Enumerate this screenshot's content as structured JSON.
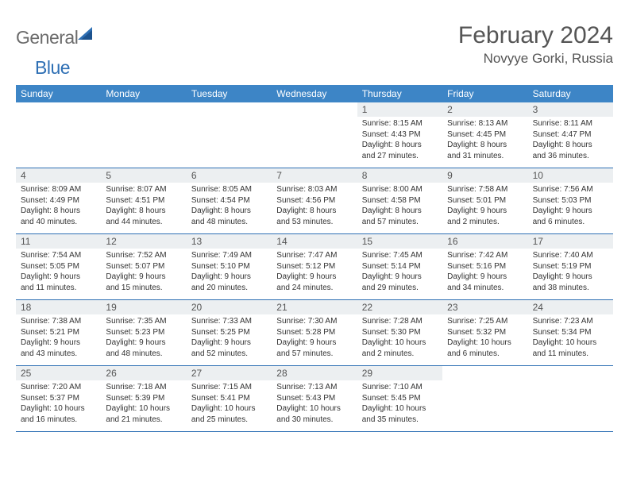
{
  "brand": {
    "general": "General",
    "blue": "Blue"
  },
  "title": "February 2024",
  "location": "Novyye Gorki, Russia",
  "colors": {
    "header_band": "#3d85c6",
    "daynum_band": "#eceff1",
    "week_divider": "#2e6fb4",
    "text": "#333333",
    "title_text": "#555555",
    "logo_gray": "#6b6b6b",
    "logo_blue": "#2e6fb4",
    "background": "#ffffff"
  },
  "days_of_week": [
    "Sunday",
    "Monday",
    "Tuesday",
    "Wednesday",
    "Thursday",
    "Friday",
    "Saturday"
  ],
  "weeks": [
    [
      null,
      null,
      null,
      null,
      {
        "n": "1",
        "sunrise": "Sunrise: 8:15 AM",
        "sunset": "Sunset: 4:43 PM",
        "daylight1": "Daylight: 8 hours",
        "daylight2": "and 27 minutes."
      },
      {
        "n": "2",
        "sunrise": "Sunrise: 8:13 AM",
        "sunset": "Sunset: 4:45 PM",
        "daylight1": "Daylight: 8 hours",
        "daylight2": "and 31 minutes."
      },
      {
        "n": "3",
        "sunrise": "Sunrise: 8:11 AM",
        "sunset": "Sunset: 4:47 PM",
        "daylight1": "Daylight: 8 hours",
        "daylight2": "and 36 minutes."
      }
    ],
    [
      {
        "n": "4",
        "sunrise": "Sunrise: 8:09 AM",
        "sunset": "Sunset: 4:49 PM",
        "daylight1": "Daylight: 8 hours",
        "daylight2": "and 40 minutes."
      },
      {
        "n": "5",
        "sunrise": "Sunrise: 8:07 AM",
        "sunset": "Sunset: 4:51 PM",
        "daylight1": "Daylight: 8 hours",
        "daylight2": "and 44 minutes."
      },
      {
        "n": "6",
        "sunrise": "Sunrise: 8:05 AM",
        "sunset": "Sunset: 4:54 PM",
        "daylight1": "Daylight: 8 hours",
        "daylight2": "and 48 minutes."
      },
      {
        "n": "7",
        "sunrise": "Sunrise: 8:03 AM",
        "sunset": "Sunset: 4:56 PM",
        "daylight1": "Daylight: 8 hours",
        "daylight2": "and 53 minutes."
      },
      {
        "n": "8",
        "sunrise": "Sunrise: 8:00 AM",
        "sunset": "Sunset: 4:58 PM",
        "daylight1": "Daylight: 8 hours",
        "daylight2": "and 57 minutes."
      },
      {
        "n": "9",
        "sunrise": "Sunrise: 7:58 AM",
        "sunset": "Sunset: 5:01 PM",
        "daylight1": "Daylight: 9 hours",
        "daylight2": "and 2 minutes."
      },
      {
        "n": "10",
        "sunrise": "Sunrise: 7:56 AM",
        "sunset": "Sunset: 5:03 PM",
        "daylight1": "Daylight: 9 hours",
        "daylight2": "and 6 minutes."
      }
    ],
    [
      {
        "n": "11",
        "sunrise": "Sunrise: 7:54 AM",
        "sunset": "Sunset: 5:05 PM",
        "daylight1": "Daylight: 9 hours",
        "daylight2": "and 11 minutes."
      },
      {
        "n": "12",
        "sunrise": "Sunrise: 7:52 AM",
        "sunset": "Sunset: 5:07 PM",
        "daylight1": "Daylight: 9 hours",
        "daylight2": "and 15 minutes."
      },
      {
        "n": "13",
        "sunrise": "Sunrise: 7:49 AM",
        "sunset": "Sunset: 5:10 PM",
        "daylight1": "Daylight: 9 hours",
        "daylight2": "and 20 minutes."
      },
      {
        "n": "14",
        "sunrise": "Sunrise: 7:47 AM",
        "sunset": "Sunset: 5:12 PM",
        "daylight1": "Daylight: 9 hours",
        "daylight2": "and 24 minutes."
      },
      {
        "n": "15",
        "sunrise": "Sunrise: 7:45 AM",
        "sunset": "Sunset: 5:14 PM",
        "daylight1": "Daylight: 9 hours",
        "daylight2": "and 29 minutes."
      },
      {
        "n": "16",
        "sunrise": "Sunrise: 7:42 AM",
        "sunset": "Sunset: 5:16 PM",
        "daylight1": "Daylight: 9 hours",
        "daylight2": "and 34 minutes."
      },
      {
        "n": "17",
        "sunrise": "Sunrise: 7:40 AM",
        "sunset": "Sunset: 5:19 PM",
        "daylight1": "Daylight: 9 hours",
        "daylight2": "and 38 minutes."
      }
    ],
    [
      {
        "n": "18",
        "sunrise": "Sunrise: 7:38 AM",
        "sunset": "Sunset: 5:21 PM",
        "daylight1": "Daylight: 9 hours",
        "daylight2": "and 43 minutes."
      },
      {
        "n": "19",
        "sunrise": "Sunrise: 7:35 AM",
        "sunset": "Sunset: 5:23 PM",
        "daylight1": "Daylight: 9 hours",
        "daylight2": "and 48 minutes."
      },
      {
        "n": "20",
        "sunrise": "Sunrise: 7:33 AM",
        "sunset": "Sunset: 5:25 PM",
        "daylight1": "Daylight: 9 hours",
        "daylight2": "and 52 minutes."
      },
      {
        "n": "21",
        "sunrise": "Sunrise: 7:30 AM",
        "sunset": "Sunset: 5:28 PM",
        "daylight1": "Daylight: 9 hours",
        "daylight2": "and 57 minutes."
      },
      {
        "n": "22",
        "sunrise": "Sunrise: 7:28 AM",
        "sunset": "Sunset: 5:30 PM",
        "daylight1": "Daylight: 10 hours",
        "daylight2": "and 2 minutes."
      },
      {
        "n": "23",
        "sunrise": "Sunrise: 7:25 AM",
        "sunset": "Sunset: 5:32 PM",
        "daylight1": "Daylight: 10 hours",
        "daylight2": "and 6 minutes."
      },
      {
        "n": "24",
        "sunrise": "Sunrise: 7:23 AM",
        "sunset": "Sunset: 5:34 PM",
        "daylight1": "Daylight: 10 hours",
        "daylight2": "and 11 minutes."
      }
    ],
    [
      {
        "n": "25",
        "sunrise": "Sunrise: 7:20 AM",
        "sunset": "Sunset: 5:37 PM",
        "daylight1": "Daylight: 10 hours",
        "daylight2": "and 16 minutes."
      },
      {
        "n": "26",
        "sunrise": "Sunrise: 7:18 AM",
        "sunset": "Sunset: 5:39 PM",
        "daylight1": "Daylight: 10 hours",
        "daylight2": "and 21 minutes."
      },
      {
        "n": "27",
        "sunrise": "Sunrise: 7:15 AM",
        "sunset": "Sunset: 5:41 PM",
        "daylight1": "Daylight: 10 hours",
        "daylight2": "and 25 minutes."
      },
      {
        "n": "28",
        "sunrise": "Sunrise: 7:13 AM",
        "sunset": "Sunset: 5:43 PM",
        "daylight1": "Daylight: 10 hours",
        "daylight2": "and 30 minutes."
      },
      {
        "n": "29",
        "sunrise": "Sunrise: 7:10 AM",
        "sunset": "Sunset: 5:45 PM",
        "daylight1": "Daylight: 10 hours",
        "daylight2": "and 35 minutes."
      },
      null,
      null
    ]
  ]
}
